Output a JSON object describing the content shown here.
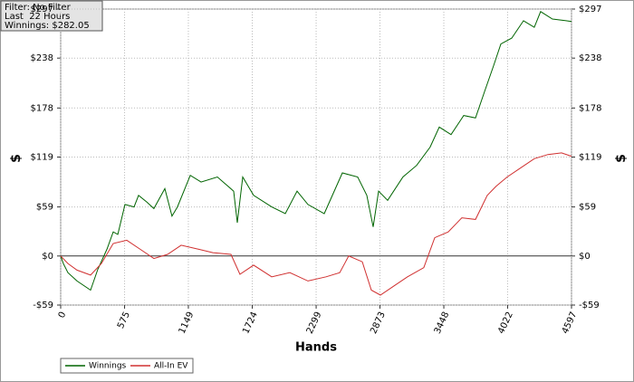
{
  "chart_data": {
    "type": "line",
    "info": [
      "Filter: No Filter",
      "Last  22 Hours",
      "Winnings: $282.05"
    ],
    "xlabel": "Hands",
    "ylabel": "$",
    "xlim": [
      0,
      4597
    ],
    "xticks": [
      0,
      575,
      1149,
      1724,
      2299,
      2873,
      3448,
      4022,
      4597
    ],
    "ylim": [
      -59,
      297
    ],
    "yticks": [
      {
        "value": -59,
        "label": "-$59"
      },
      {
        "value": 0,
        "label": "$0"
      },
      {
        "value": 59,
        "label": "$59"
      },
      {
        "value": 119,
        "label": "$119"
      },
      {
        "value": 178,
        "label": "$178"
      },
      {
        "value": 238,
        "label": "$238"
      },
      {
        "value": 297,
        "label": "$297"
      }
    ],
    "grid": true,
    "series": [
      {
        "name": "Winnings",
        "color": "#006400",
        "x": [
          0,
          24,
          65,
          147,
          269,
          334,
          416,
          473,
          514,
          579,
          660,
          701,
          774,
          839,
          937,
          1002,
          1051,
          1166,
          1263,
          1410,
          1557,
          1589,
          1638,
          1736,
          1899,
          2021,
          2127,
          2225,
          2372,
          2535,
          2673,
          2755,
          2812,
          2861,
          2942,
          3080,
          3203,
          3325,
          3407,
          3513,
          3627,
          3733,
          3815,
          3896,
          3961,
          4059,
          4165,
          4262,
          4319,
          4425,
          4548,
          4597
        ],
        "values": [
          0,
          -9,
          -20,
          -30,
          -41,
          -16,
          8,
          29,
          26,
          62,
          59,
          73,
          65,
          57,
          81,
          48,
          59,
          97,
          89,
          95,
          78,
          40,
          95,
          73,
          59,
          51,
          78,
          62,
          51,
          100,
          95,
          73,
          35,
          78,
          67,
          95,
          109,
          131,
          155,
          146,
          169,
          166,
          198,
          229,
          255,
          262,
          283,
          275,
          294,
          285,
          283,
          282
        ]
      },
      {
        "name": "All-In EV",
        "color": "#d03030",
        "x": [
          0,
          65,
          147,
          269,
          367,
          473,
          595,
          717,
          839,
          962,
          1084,
          1247,
          1369,
          1532,
          1613,
          1736,
          1899,
          2062,
          2225,
          2388,
          2511,
          2592,
          2714,
          2796,
          2877,
          2999,
          3121,
          3268,
          3366,
          3488,
          3610,
          3733,
          3839,
          3920,
          4018,
          4140,
          4262,
          4385,
          4507,
          4597
        ],
        "values": [
          0,
          -9,
          -17,
          -23,
          -9,
          15,
          19,
          8,
          -3,
          2,
          13,
          8,
          4,
          2,
          -22,
          -11,
          -25,
          -20,
          -30,
          -25,
          -20,
          0,
          -7,
          -41,
          -47,
          -36,
          -25,
          -14,
          22,
          29,
          46,
          44,
          73,
          84,
          95,
          106,
          117,
          122,
          124,
          120
        ]
      }
    ]
  }
}
